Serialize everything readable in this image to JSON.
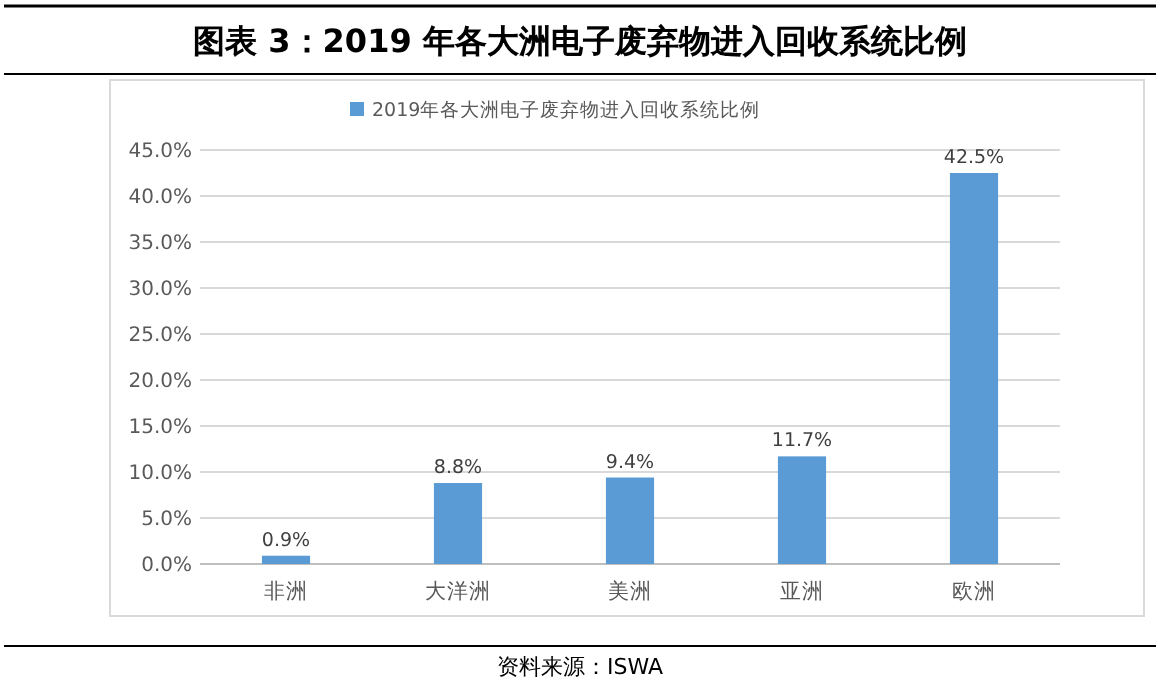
{
  "chart_data": {
    "type": "bar",
    "title": "图表 3：2019 年各大洲电子废弃物进入回收系统比例",
    "categories": [
      "非洲",
      "大洋洲",
      "美洲",
      "亚洲",
      "欧洲"
    ],
    "series": [
      {
        "name": "2019年各大洲电子废弃物进入回收系统比例",
        "color": "#5b9bd5",
        "values": [
          0.9,
          8.8,
          9.4,
          11.7,
          42.5
        ],
        "value_labels": [
          "0.9%",
          "8.8%",
          "9.4%",
          "11.7%",
          "42.5%"
        ]
      }
    ],
    "ylim": [
      0,
      45
    ],
    "yticks": [
      {
        "value": 0,
        "label": "0.0%"
      },
      {
        "value": 5,
        "label": "5.0%"
      },
      {
        "value": 10,
        "label": "10.0%"
      },
      {
        "value": 15,
        "label": "15.0%"
      },
      {
        "value": 20,
        "label": "20.0%"
      },
      {
        "value": 25,
        "label": "25.0%"
      },
      {
        "value": 30,
        "label": "30.0%"
      },
      {
        "value": 35,
        "label": "35.0%"
      },
      {
        "value": 40,
        "label": "40.0%"
      },
      {
        "value": 45,
        "label": "45.0%"
      }
    ],
    "grid": "y",
    "legend": "top",
    "annotations": [
      "资料来源：ISWA"
    ]
  }
}
